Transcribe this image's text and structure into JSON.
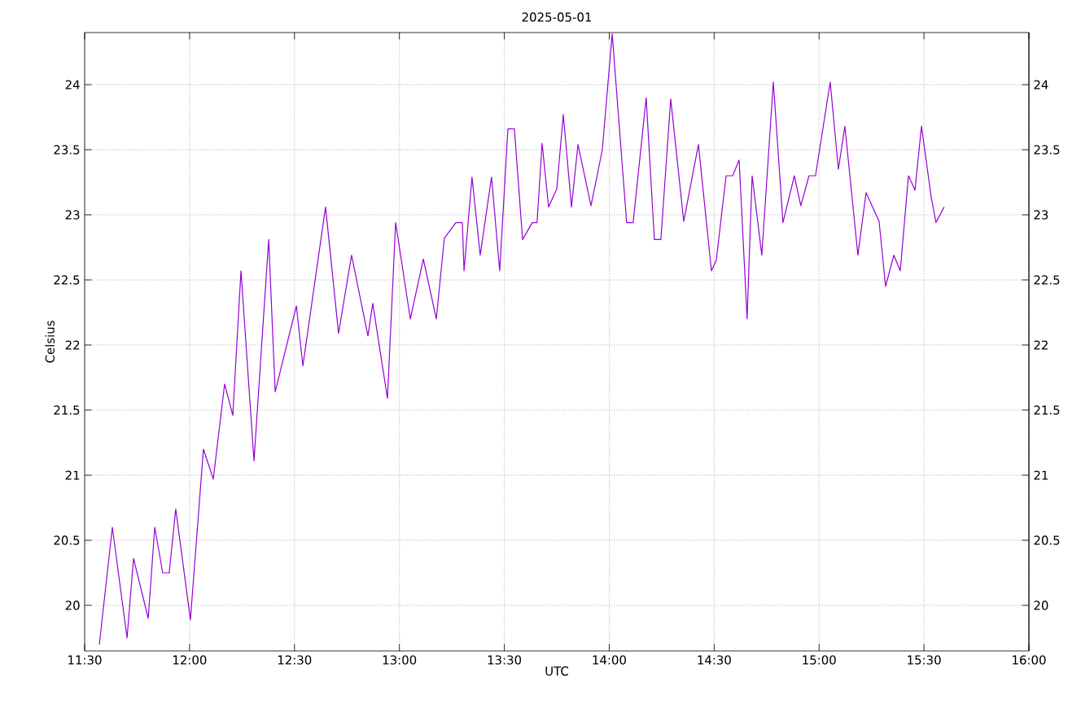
{
  "chart_data": {
    "type": "line",
    "title": "2025-05-01",
    "xlabel": "UTC",
    "ylabel": "Celsius",
    "xlim": [
      11.5,
      16
    ],
    "ylim": [
      19.65,
      24.4
    ],
    "y2lim": [
      19.65,
      24.4
    ],
    "xticks": [
      {
        "value": 11.5,
        "label": "11:30"
      },
      {
        "value": 12,
        "label": "12:00"
      },
      {
        "value": 12.5,
        "label": "12:30"
      },
      {
        "value": 13,
        "label": "13:00"
      },
      {
        "value": 13.5,
        "label": "13:30"
      },
      {
        "value": 14,
        "label": "14:00"
      },
      {
        "value": 14.5,
        "label": "14:30"
      },
      {
        "value": 15,
        "label": "15:00"
      },
      {
        "value": 15.5,
        "label": "15:30"
      },
      {
        "value": 16,
        "label": "16:00"
      }
    ],
    "yticks": [
      20,
      20.5,
      21,
      21.5,
      22,
      22.5,
      23,
      23.5,
      24
    ],
    "y2ticks": [
      20,
      20.5,
      21,
      21.5,
      22,
      22.5,
      23,
      23.5,
      24
    ],
    "grid": true,
    "series": [
      {
        "color": "#9400d3",
        "x": [
          11.57,
          11.632,
          11.702,
          11.733,
          11.803,
          11.834,
          11.872,
          11.903,
          11.934,
          12.004,
          12.066,
          12.113,
          12.167,
          12.206,
          12.245,
          12.307,
          12.377,
          12.408,
          12.509,
          12.54,
          12.648,
          12.71,
          12.772,
          12.85,
          12.873,
          12.943,
          12.982,
          13.052,
          13.114,
          13.176,
          13.214,
          13.269,
          13.3,
          13.308,
          13.346,
          13.385,
          13.439,
          13.478,
          13.517,
          13.548,
          13.587,
          13.633,
          13.656,
          13.68,
          13.711,
          13.75,
          13.781,
          13.82,
          13.851,
          13.913,
          13.967,
          14.014,
          14.083,
          14.114,
          14.176,
          14.215,
          14.246,
          14.293,
          14.355,
          14.425,
          14.487,
          14.51,
          14.557,
          14.588,
          14.619,
          14.657,
          14.681,
          14.727,
          14.782,
          14.828,
          14.882,
          14.913,
          14.952,
          14.983,
          15.053,
          15.092,
          15.123,
          15.185,
          15.224,
          15.286,
          15.317,
          15.356,
          15.387,
          15.426,
          15.457,
          15.488,
          15.534,
          15.557,
          15.596
        ],
        "values": [
          19.7,
          20.6,
          19.75,
          20.36,
          19.9,
          20.6,
          20.25,
          20.25,
          20.74,
          19.89,
          21.2,
          20.97,
          21.7,
          21.46,
          22.57,
          21.11,
          22.81,
          21.64,
          22.3,
          21.84,
          23.06,
          22.09,
          22.69,
          22.07,
          22.32,
          21.59,
          22.94,
          22.2,
          22.66,
          22.2,
          22.82,
          22.94,
          22.94,
          22.57,
          23.29,
          22.69,
          23.29,
          22.57,
          23.66,
          23.66,
          22.81,
          22.94,
          22.94,
          23.55,
          23.06,
          23.2,
          23.77,
          23.06,
          23.54,
          23.07,
          23.5,
          24.39,
          22.94,
          22.94,
          23.9,
          22.81,
          22.81,
          23.89,
          22.95,
          23.54,
          22.57,
          22.65,
          23.3,
          23.3,
          23.42,
          22.2,
          23.3,
          22.69,
          24.02,
          22.94,
          23.3,
          23.07,
          23.3,
          23.3,
          24.02,
          23.35,
          23.68,
          22.69,
          23.17,
          22.95,
          22.45,
          22.69,
          22.57,
          23.3,
          23.19,
          23.68,
          23.14,
          22.94,
          23.06
        ]
      }
    ]
  }
}
